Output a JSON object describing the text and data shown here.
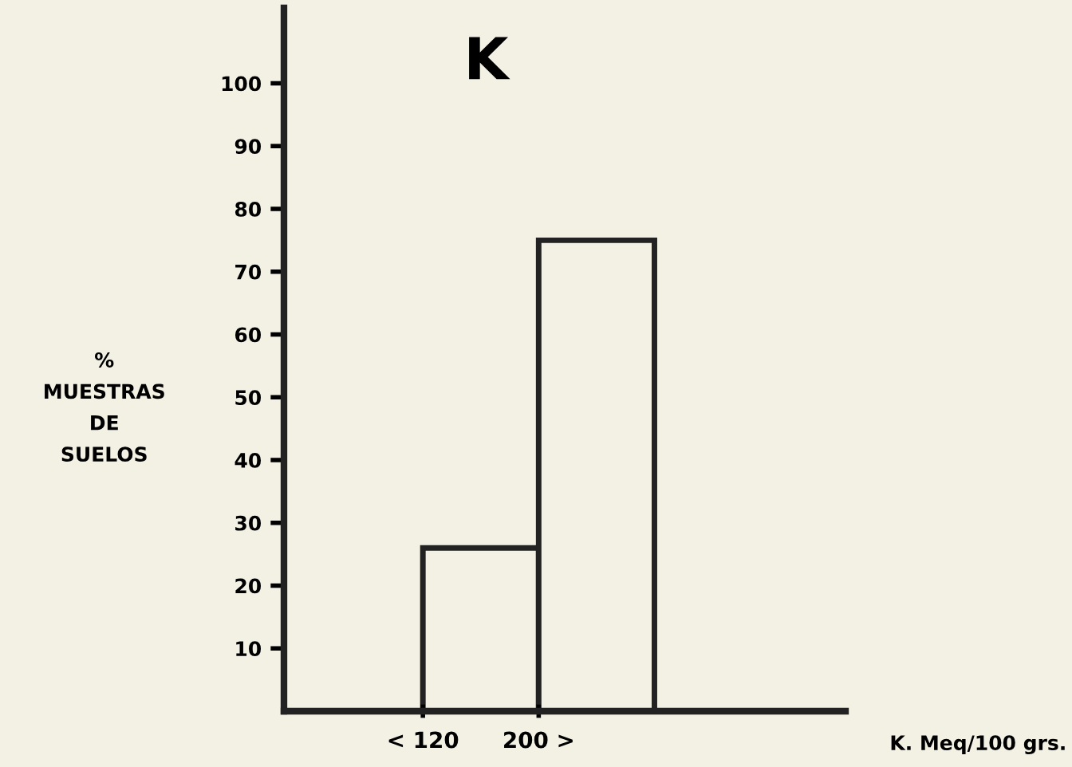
{
  "chart_data": {
    "type": "bar",
    "title": "K",
    "ylabel": "%\nMUESTRAS\nDE\nSUELOS",
    "annotations": [
      "K. Meq/100 grs."
    ],
    "categories": [
      "< 120",
      "200 >"
    ],
    "values": [
      26,
      75
    ],
    "color": "#f3f1e4",
    "ylim": [
      0,
      112
    ],
    "yticks": [
      10,
      20,
      30,
      40,
      50,
      60,
      70,
      80,
      90,
      100
    ],
    "grid": false
  }
}
